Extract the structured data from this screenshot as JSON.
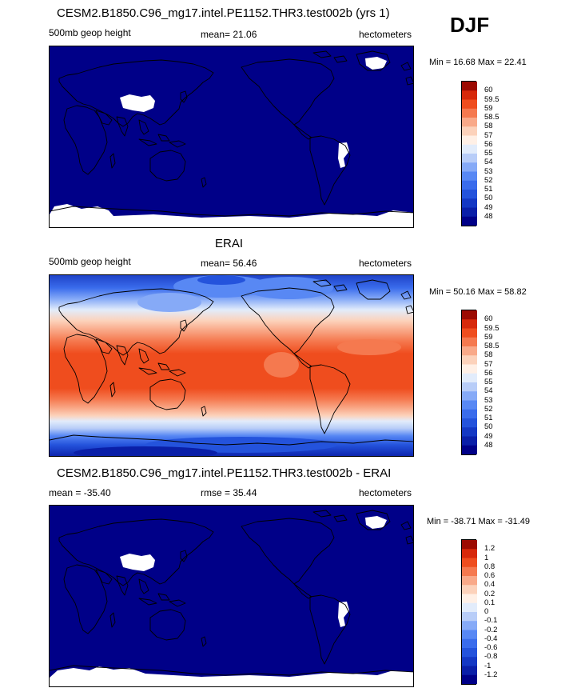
{
  "season": "DJF",
  "panels": [
    {
      "title": "CESM2.B1850.C96_mg17.intel.PE1152.THR3.test002b (yrs 1)",
      "left_label": "500mb geop height",
      "center_label": "mean=  21.06",
      "right_label": "hectometers",
      "minmax": "Min =  16.68 Max =  22.41"
    },
    {
      "title": "ERAI",
      "left_label": "500mb geop height",
      "center_label": "mean=  56.46",
      "right_label": "hectometers",
      "minmax": "Min =  50.16 Max =  58.82"
    },
    {
      "title": "CESM2.B1850.C96_mg17.intel.PE1152.THR3.test002b - ERAI",
      "left_label": "mean = -35.40",
      "center_label": "rmse =  35.44",
      "right_label": "hectometers",
      "minmax": "Min = -38.71 Max = -31.49"
    }
  ],
  "colorbars": {
    "abs": [
      "60",
      "59.5",
      "59",
      "58.5",
      "58",
      "57",
      "56",
      "55",
      "54",
      "53",
      "52",
      "51",
      "50",
      "49",
      "48"
    ],
    "diff": [
      "1.2",
      "1",
      "0.8",
      "0.6",
      "0.4",
      "0.2",
      "0.1",
      "0",
      "-0.1",
      "-0.2",
      "-0.4",
      "-0.6",
      "-0.8",
      "-1",
      "-1.2"
    ]
  },
  "palette": [
    "#000088",
    "#0a1fa8",
    "#1438c4",
    "#2453dc",
    "#3a6cec",
    "#5888f4",
    "#86aaf7",
    "#b8cdf8",
    "#e2ecfb",
    "#fff0e6",
    "#fcd2bb",
    "#f9a989",
    "#f5794f",
    "#ef4d1e",
    "#d7290b",
    "#9c0a02"
  ],
  "chart_data": [
    {
      "type": "heatmap",
      "title": "CESM2.B1850.C96_mg17.intel.PE1152.THR3.test002b (yrs 1)",
      "variable": "500mb geop height",
      "units": "hectometers",
      "mean": 21.06,
      "min": 16.68,
      "max": 22.41,
      "levels": [
        48,
        49,
        50,
        51,
        52,
        53,
        54,
        55,
        56,
        57,
        58,
        58.5,
        59,
        59.5,
        60
      ],
      "note": "all values below lowest contour level; missing data shown white"
    },
    {
      "type": "heatmap",
      "title": "ERAI",
      "variable": "500mb geop height",
      "units": "hectometers",
      "mean": 56.46,
      "min": 50.16,
      "max": 58.82,
      "levels": [
        48,
        49,
        50,
        51,
        52,
        53,
        54,
        55,
        56,
        57,
        58,
        58.5,
        59,
        59.5,
        60
      ]
    },
    {
      "type": "heatmap",
      "title": "CESM2.B1850.C96_mg17.intel.PE1152.THR3.test002b - ERAI",
      "units": "hectometers",
      "mean": -35.4,
      "rmse": 35.44,
      "min": -38.71,
      "max": -31.49,
      "levels": [
        -1.2,
        -1,
        -0.8,
        -0.6,
        -0.4,
        -0.2,
        -0.1,
        0,
        0.1,
        0.2,
        0.4,
        0.6,
        0.8,
        1,
        1.2
      ]
    }
  ]
}
